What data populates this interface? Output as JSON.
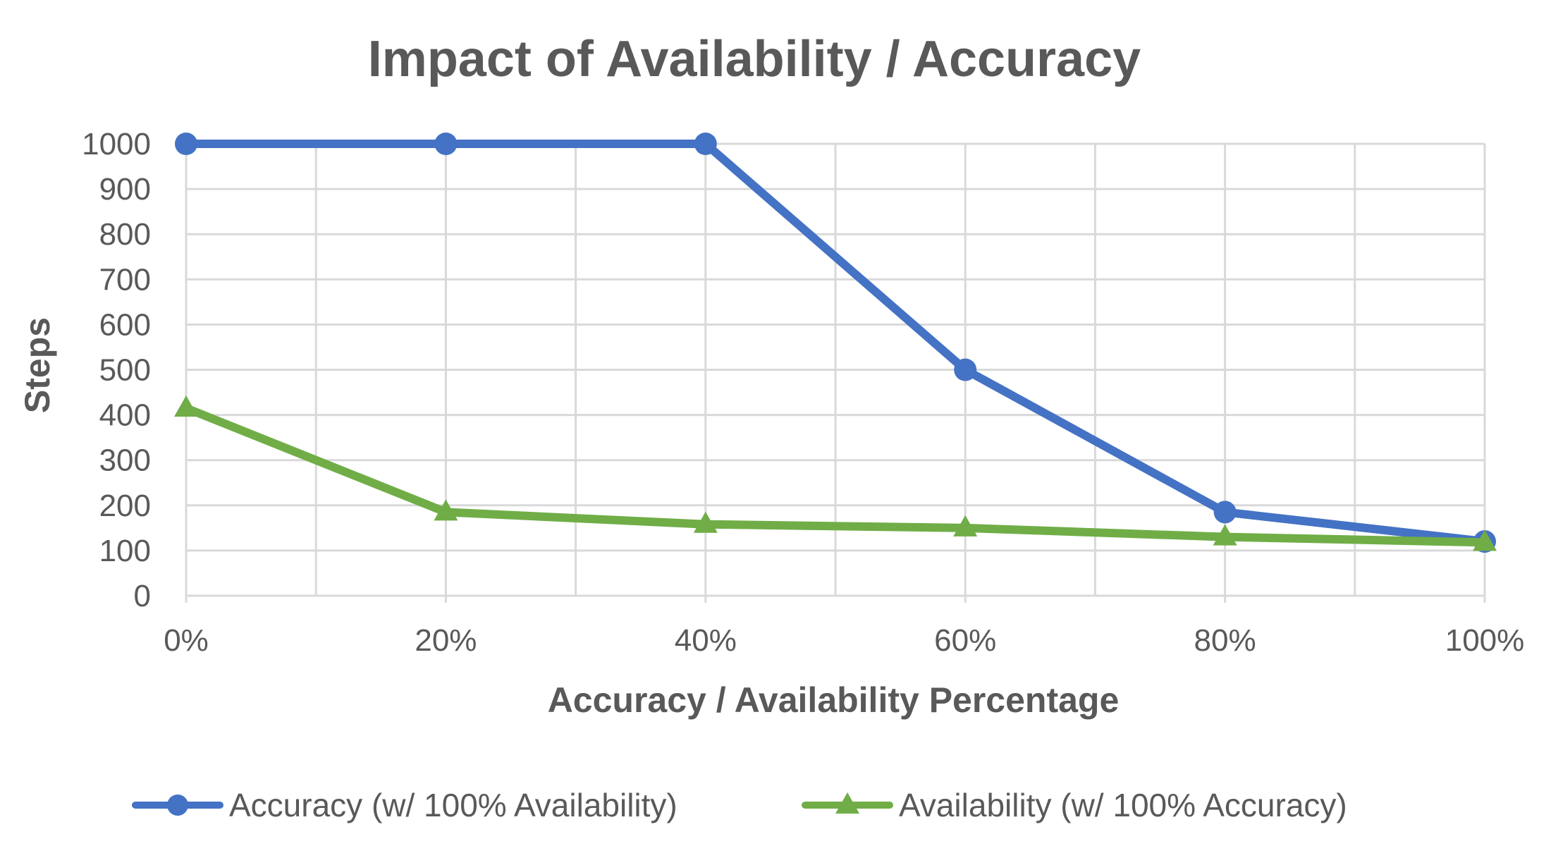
{
  "chart_data": {
    "type": "line",
    "title": "Impact of Availability / Accuracy",
    "xlabel": "Accuracy / Availability Percentage",
    "ylabel": "Steps",
    "categories": [
      "0%",
      "20%",
      "40%",
      "60%",
      "80%",
      "100%"
    ],
    "x_minor_grid": true,
    "ylim": [
      0,
      1000
    ],
    "yticks": [
      0,
      100,
      200,
      300,
      400,
      500,
      600,
      700,
      800,
      900,
      1000
    ],
    "grid": true,
    "legend_position": "bottom",
    "series": [
      {
        "name": "Accuracy (w/ 100% Availability)",
        "color": "#4472C4",
        "marker": "circle",
        "values": [
          1000,
          1000,
          1000,
          500,
          185,
          120
        ]
      },
      {
        "name": "Availability (w/ 100% Accuracy)",
        "color": "#70AD47",
        "marker": "triangle",
        "values": [
          415,
          185,
          158,
          150,
          130,
          118
        ]
      }
    ]
  }
}
